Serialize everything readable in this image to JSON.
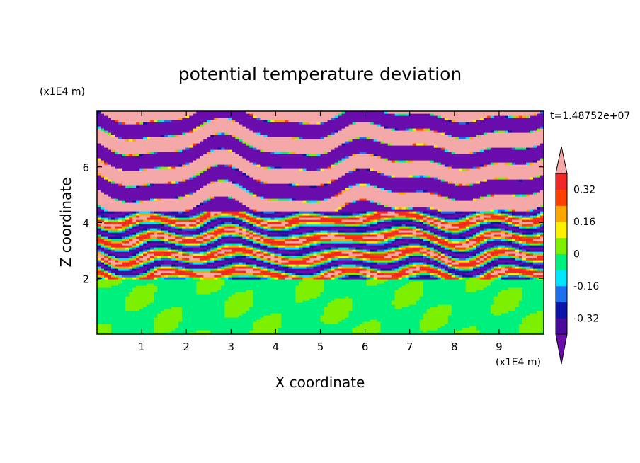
{
  "chart_data": {
    "type": "heatmap",
    "title": "potential temperature deviation",
    "xlabel": "X coordinate",
    "ylabel": "Z coordinate",
    "x_unit": "(x1E4 m)",
    "z_unit": "(x1E4 m)",
    "time_label": "t=1.48752e+07",
    "xlim": [
      0,
      10
    ],
    "zlim": [
      0,
      8
    ],
    "x_ticks": [
      "1",
      "2",
      "3",
      "4",
      "5",
      "6",
      "7",
      "8",
      "9"
    ],
    "z_ticks": [
      "2",
      "4",
      "6"
    ],
    "colorbar": {
      "labels": [
        "0.32",
        "0.16",
        "0",
        "-0.16",
        "-0.32"
      ],
      "levels": [
        -0.4,
        -0.32,
        -0.24,
        -0.16,
        -0.08,
        0,
        0.08,
        0.16,
        0.24,
        0.32,
        0.4
      ],
      "colors": [
        "#6a0dad",
        "#4b0a9e",
        "#0a14a8",
        "#1e6ef0",
        "#00e5ff",
        "#00f07d",
        "#7cf000",
        "#fff000",
        "#ffa500",
        "#ff4000",
        "#f02828",
        "#f4a8a8"
      ],
      "extend": "both"
    },
    "field_description_bands": [
      {
        "z_range": [
          0,
          2
        ],
        "values": "near 0 (green / light green)"
      },
      {
        "z_range": [
          2,
          4.4
        ],
        "values": "mixed, full range"
      },
      {
        "z_range": [
          4.4,
          8
        ],
        "values": "alternating -0.4 and +0.4 layers"
      }
    ]
  }
}
